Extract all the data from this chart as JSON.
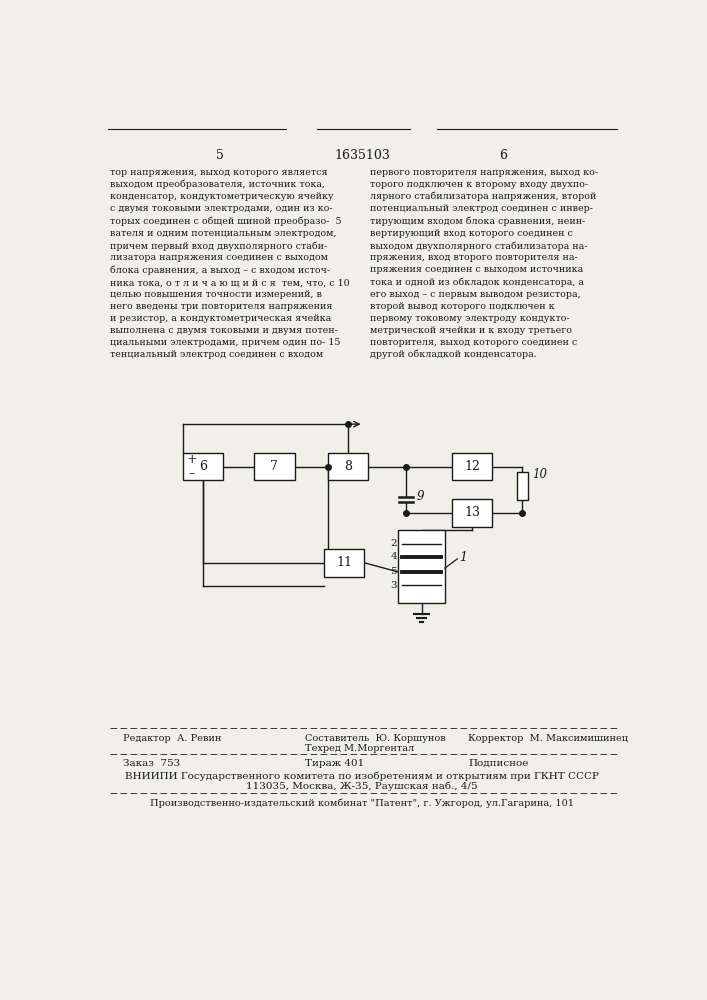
{
  "page_numbers": [
    "5",
    "1635103",
    "6"
  ],
  "text_left": "тор напряжения, выход которого является\nвыходом преобразователя, источник тока,\nконденсатор, кондуктометрическую ячейку\nс двумя токовыми электродами, один из ко-\nторых соединен с общей шиной преобразо-  5\nвателя и одним потенциальным электродом,\nпричем первый вход двухполярного стаби-\nлизатора напряжения соединен с выходом\nблока сравнения, а выход – с входом источ-\nника тока, о т л и ч а ю щ и й с я  тем, что, с 10\nцелью повышения точности измерений, в\nнего введены три повторителя напряжения\nи резистор, а кондуктометрическая ячейка\nвыполнена с двумя токовыми и двумя потен-\nциальными электродами, причем один по- 15\nтенциальный электрод соединен с входом",
  "text_right": "первого повторителя напряжения, выход ко-\nторого подключен к второму входу двухпо-\nлярного стабилизатора напряжения, второй\nпотенциальный электрод соединен с инвер-\nтирующим входом блока сравнения, неин-\nвертирующий вход которого соединен с\nвыходом двухполярного стабилизатора на-\nпряжения, вход второго повторителя на-\nпряжения соединен с выходом источника\nтока и одной из обкладок конденсатора, а\nего выход – с первым выводом резистора,\nвторой вывод которого подключен к\nпервому токовому электроду кондукто-\nметрической ячейки и к входу третьего\nповторителя, выход которого соединен с\nдругой обкладкой конденсатора.",
  "footer_editor": "Редактор  А. Ревин",
  "footer_comp1": "Составитель  Ю. Коршунов",
  "footer_comp2": "Техред М.Моргентал",
  "footer_correct": "Корректор  М. Максимишинец",
  "footer_order": "Заказ  753",
  "footer_tirazh": "Тираж 401",
  "footer_podp": "Подписное",
  "footer_vniip1": "ВНИИПИ Государственного комитета по изобретениям и открытиям при ГКНТ СССР",
  "footer_vniip2": "113035, Москва, Ж-35, Раушская наб., 4/5",
  "footer_prod": "Производственно-издательский комбинат \"Патент\", г. Ужгород, ул.Гагарина, 101",
  "bg_color": "#f0efe8",
  "line_color": "#1a1a1a",
  "text_color": "#1a1a1a"
}
